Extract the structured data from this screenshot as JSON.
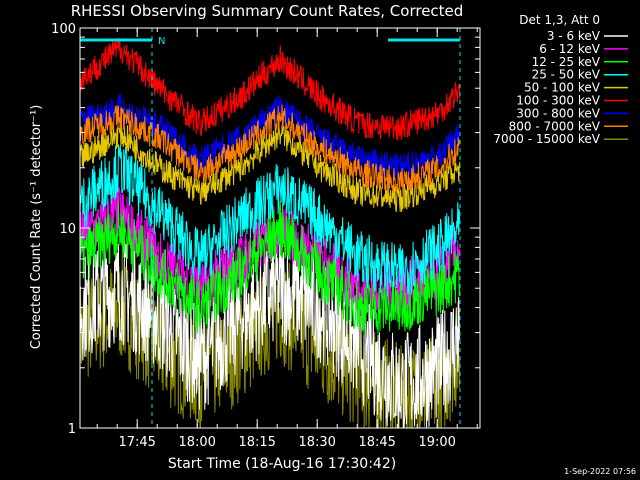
{
  "chart_data": {
    "type": "line",
    "title": "RHESSI Observing Summary Count Rates, Corrected",
    "xlabel": "Start Time (18-Aug-16 17:30:42)",
    "ylabel": "Corrected Count Rate (s⁻¹ detector⁻¹)",
    "xlim_minutes": [
      0,
      100
    ],
    "ylim": [
      1,
      100
    ],
    "yscale": "log",
    "x_tick_labels": [
      {
        "label": "17:45",
        "minute": 14.3
      },
      {
        "label": "18:00",
        "minute": 29.3
      },
      {
        "label": "18:15",
        "minute": 44.3
      },
      {
        "label": "18:30",
        "minute": 59.3
      },
      {
        "label": "18:45",
        "minute": 74.3
      },
      {
        "label": "19:00",
        "minute": 89.3
      }
    ],
    "y_tick_labels": [
      {
        "label": "1",
        "value": 1
      },
      {
        "label": "10",
        "value": 10
      },
      {
        "label": "100",
        "value": 100
      }
    ],
    "legend_title": "Det 1,3, Att 0",
    "legend_position": "right",
    "flags": [
      {
        "label": "N",
        "start_minute": 0,
        "end_minute": 18,
        "color": "#00e5e5"
      },
      {
        "label": "",
        "start_minute": 77,
        "end_minute": 95,
        "color": "#00e5e5"
      }
    ],
    "timestamp": "1-Sep-2022 07:56",
    "series": [
      {
        "name": "3 - 6 keV",
        "color": "#ffffff",
        "points": [
          [
            0,
            4
          ],
          [
            10,
            5
          ],
          [
            20,
            3.5
          ],
          [
            30,
            2.2
          ],
          [
            40,
            3.5
          ],
          [
            50,
            5
          ],
          [
            60,
            4
          ],
          [
            70,
            2.5
          ],
          [
            80,
            1.6
          ],
          [
            90,
            2
          ],
          [
            95,
            3
          ]
        ]
      },
      {
        "name": "6 - 12 keV",
        "color": "#ff00ff",
        "points": [
          [
            0,
            9
          ],
          [
            10,
            12
          ],
          [
            20,
            7
          ],
          [
            30,
            5
          ],
          [
            40,
            7
          ],
          [
            50,
            10
          ],
          [
            60,
            7
          ],
          [
            70,
            5
          ],
          [
            80,
            5
          ],
          [
            90,
            6
          ],
          [
            95,
            8
          ]
        ]
      },
      {
        "name": "12 - 25 keV",
        "color": "#00ff00",
        "points": [
          [
            0,
            7
          ],
          [
            10,
            10
          ],
          [
            20,
            6
          ],
          [
            30,
            4
          ],
          [
            40,
            6
          ],
          [
            50,
            10
          ],
          [
            60,
            6
          ],
          [
            70,
            4
          ],
          [
            80,
            4
          ],
          [
            90,
            5
          ],
          [
            95,
            6
          ]
        ]
      },
      {
        "name": "25 - 50 keV",
        "color": "#00ffff",
        "points": [
          [
            0,
            13
          ],
          [
            10,
            20
          ],
          [
            20,
            12
          ],
          [
            30,
            7
          ],
          [
            40,
            11
          ],
          [
            50,
            16
          ],
          [
            60,
            11
          ],
          [
            70,
            7
          ],
          [
            80,
            6
          ],
          [
            90,
            8
          ],
          [
            95,
            10
          ]
        ]
      },
      {
        "name": "50 - 100 keV",
        "color": "#e5c800",
        "points": [
          [
            0,
            22
          ],
          [
            10,
            30
          ],
          [
            20,
            20
          ],
          [
            30,
            15
          ],
          [
            40,
            20
          ],
          [
            50,
            30
          ],
          [
            60,
            20
          ],
          [
            70,
            15
          ],
          [
            80,
            14
          ],
          [
            90,
            17
          ],
          [
            95,
            20
          ]
        ]
      },
      {
        "name": "100 - 300 keV",
        "color": "#ff0000",
        "points": [
          [
            0,
            55
          ],
          [
            10,
            80
          ],
          [
            20,
            50
          ],
          [
            30,
            33
          ],
          [
            40,
            45
          ],
          [
            50,
            70
          ],
          [
            60,
            45
          ],
          [
            70,
            33
          ],
          [
            80,
            32
          ],
          [
            90,
            38
          ],
          [
            95,
            50
          ]
        ]
      },
      {
        "name": "300 - 800 keV",
        "color": "#0000ff",
        "points": [
          [
            0,
            35
          ],
          [
            10,
            40
          ],
          [
            20,
            32
          ],
          [
            30,
            22
          ],
          [
            40,
            28
          ],
          [
            50,
            40
          ],
          [
            60,
            28
          ],
          [
            70,
            22
          ],
          [
            80,
            20
          ],
          [
            90,
            23
          ],
          [
            95,
            30
          ]
        ]
      },
      {
        "name": "800 - 7000 keV",
        "color": "#ff8000",
        "points": [
          [
            0,
            30
          ],
          [
            10,
            36
          ],
          [
            20,
            28
          ],
          [
            30,
            19
          ],
          [
            40,
            25
          ],
          [
            50,
            36
          ],
          [
            60,
            25
          ],
          [
            70,
            19
          ],
          [
            80,
            17
          ],
          [
            90,
            20
          ],
          [
            95,
            26
          ]
        ]
      },
      {
        "name": "7000 - 15000 keV",
        "color": "#888800",
        "points": [
          [
            0,
            3
          ],
          [
            10,
            4
          ],
          [
            20,
            2.5
          ],
          [
            30,
            1.8
          ],
          [
            40,
            2.5
          ],
          [
            50,
            4
          ],
          [
            60,
            2.5
          ],
          [
            70,
            1.8
          ],
          [
            80,
            1.4
          ],
          [
            90,
            1.6
          ],
          [
            95,
            2.5
          ]
        ]
      }
    ]
  }
}
